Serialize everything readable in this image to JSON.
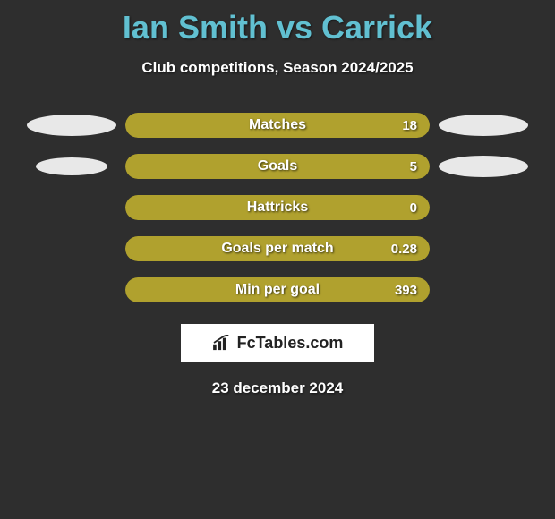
{
  "title": "Ian Smith vs Carrick",
  "subtitle": "Club competitions, Season 2024/2025",
  "date": "23 december 2024",
  "colors": {
    "background": "#2e2e2e",
    "title_color": "#61c0d1",
    "text_color": "#ffffff",
    "bar_fill": "#b0a12e",
    "bar_track": "#4a472a",
    "pill_color": "#e8e8e8",
    "logo_bg": "#ffffff",
    "logo_text": "#222222"
  },
  "bars": [
    {
      "label": "Matches",
      "value": "18",
      "fill_pct": 100,
      "show_left_pill": true,
      "show_right_pill": true,
      "left_pill_w": 100,
      "left_pill_h": 24,
      "right_pill_w": 100,
      "right_pill_h": 24
    },
    {
      "label": "Goals",
      "value": "5",
      "fill_pct": 100,
      "show_left_pill": true,
      "show_right_pill": true,
      "left_pill_w": 80,
      "left_pill_h": 20,
      "right_pill_w": 100,
      "right_pill_h": 24
    },
    {
      "label": "Hattricks",
      "value": "0",
      "fill_pct": 100,
      "show_left_pill": false,
      "show_right_pill": false
    },
    {
      "label": "Goals per match",
      "value": "0.28",
      "fill_pct": 100,
      "show_left_pill": false,
      "show_right_pill": false
    },
    {
      "label": "Min per goal",
      "value": "393",
      "fill_pct": 100,
      "show_left_pill": false,
      "show_right_pill": false
    }
  ],
  "logo": {
    "text": "FcTables.com"
  }
}
